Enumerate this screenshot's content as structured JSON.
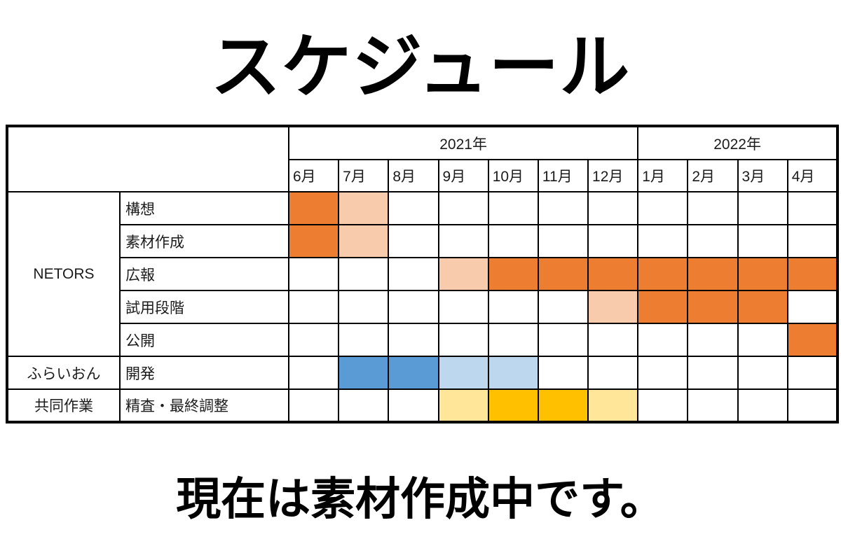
{
  "page": {
    "title": "スケジュール",
    "footer": "現在は素材作成中です。"
  },
  "colors": {
    "orange": "#ED7D31",
    "orange_light": "#F8CBAD",
    "blue": "#5B9BD5",
    "blue_light": "#BDD7EE",
    "gold": "#FFC000",
    "gold_light": "#FFE699",
    "border": "#000000"
  },
  "chart_data": {
    "type": "table",
    "subtype": "gantt-schedule",
    "title": "スケジュール",
    "year_groups": [
      {
        "label": "2021年",
        "span": 7
      },
      {
        "label": "2022年",
        "span": 4
      }
    ],
    "months": [
      "6月",
      "7月",
      "8月",
      "9月",
      "10月",
      "11月",
      "12月",
      "1月",
      "2月",
      "3月",
      "4月"
    ],
    "year_boundary_after_index": 6,
    "rows": [
      {
        "group": "NETORS",
        "task": "構想",
        "cells": [
          "orange",
          "orange_light",
          "",
          "",
          "",
          "",
          "",
          "",
          "",
          "",
          ""
        ]
      },
      {
        "group": "NETORS",
        "task": "素材作成",
        "cells": [
          "orange",
          "orange_light",
          "",
          "",
          "",
          "",
          "",
          "",
          "",
          "",
          ""
        ]
      },
      {
        "group": "NETORS",
        "task": "広報",
        "cells": [
          "",
          "",
          "",
          "orange_light",
          "orange",
          "orange",
          "orange",
          "orange",
          "orange",
          "orange",
          "orange"
        ]
      },
      {
        "group": "NETORS",
        "task": "試用段階",
        "cells": [
          "",
          "",
          "",
          "",
          "",
          "",
          "orange_light",
          "orange",
          "orange",
          "orange",
          ""
        ]
      },
      {
        "group": "NETORS",
        "task": "公開",
        "cells": [
          "",
          "",
          "",
          "",
          "",
          "",
          "",
          "",
          "",
          "",
          "orange"
        ]
      },
      {
        "group": "ふらいおん",
        "task": "開発",
        "cells": [
          "",
          "blue",
          "blue",
          "blue_light",
          "blue_light",
          "",
          "",
          "",
          "",
          "",
          ""
        ]
      },
      {
        "group": "共同作業",
        "task": "精査・最終調整",
        "cells": [
          "",
          "",
          "",
          "gold_light",
          "gold",
          "gold",
          "gold_light",
          "",
          "",
          "",
          ""
        ]
      }
    ]
  }
}
